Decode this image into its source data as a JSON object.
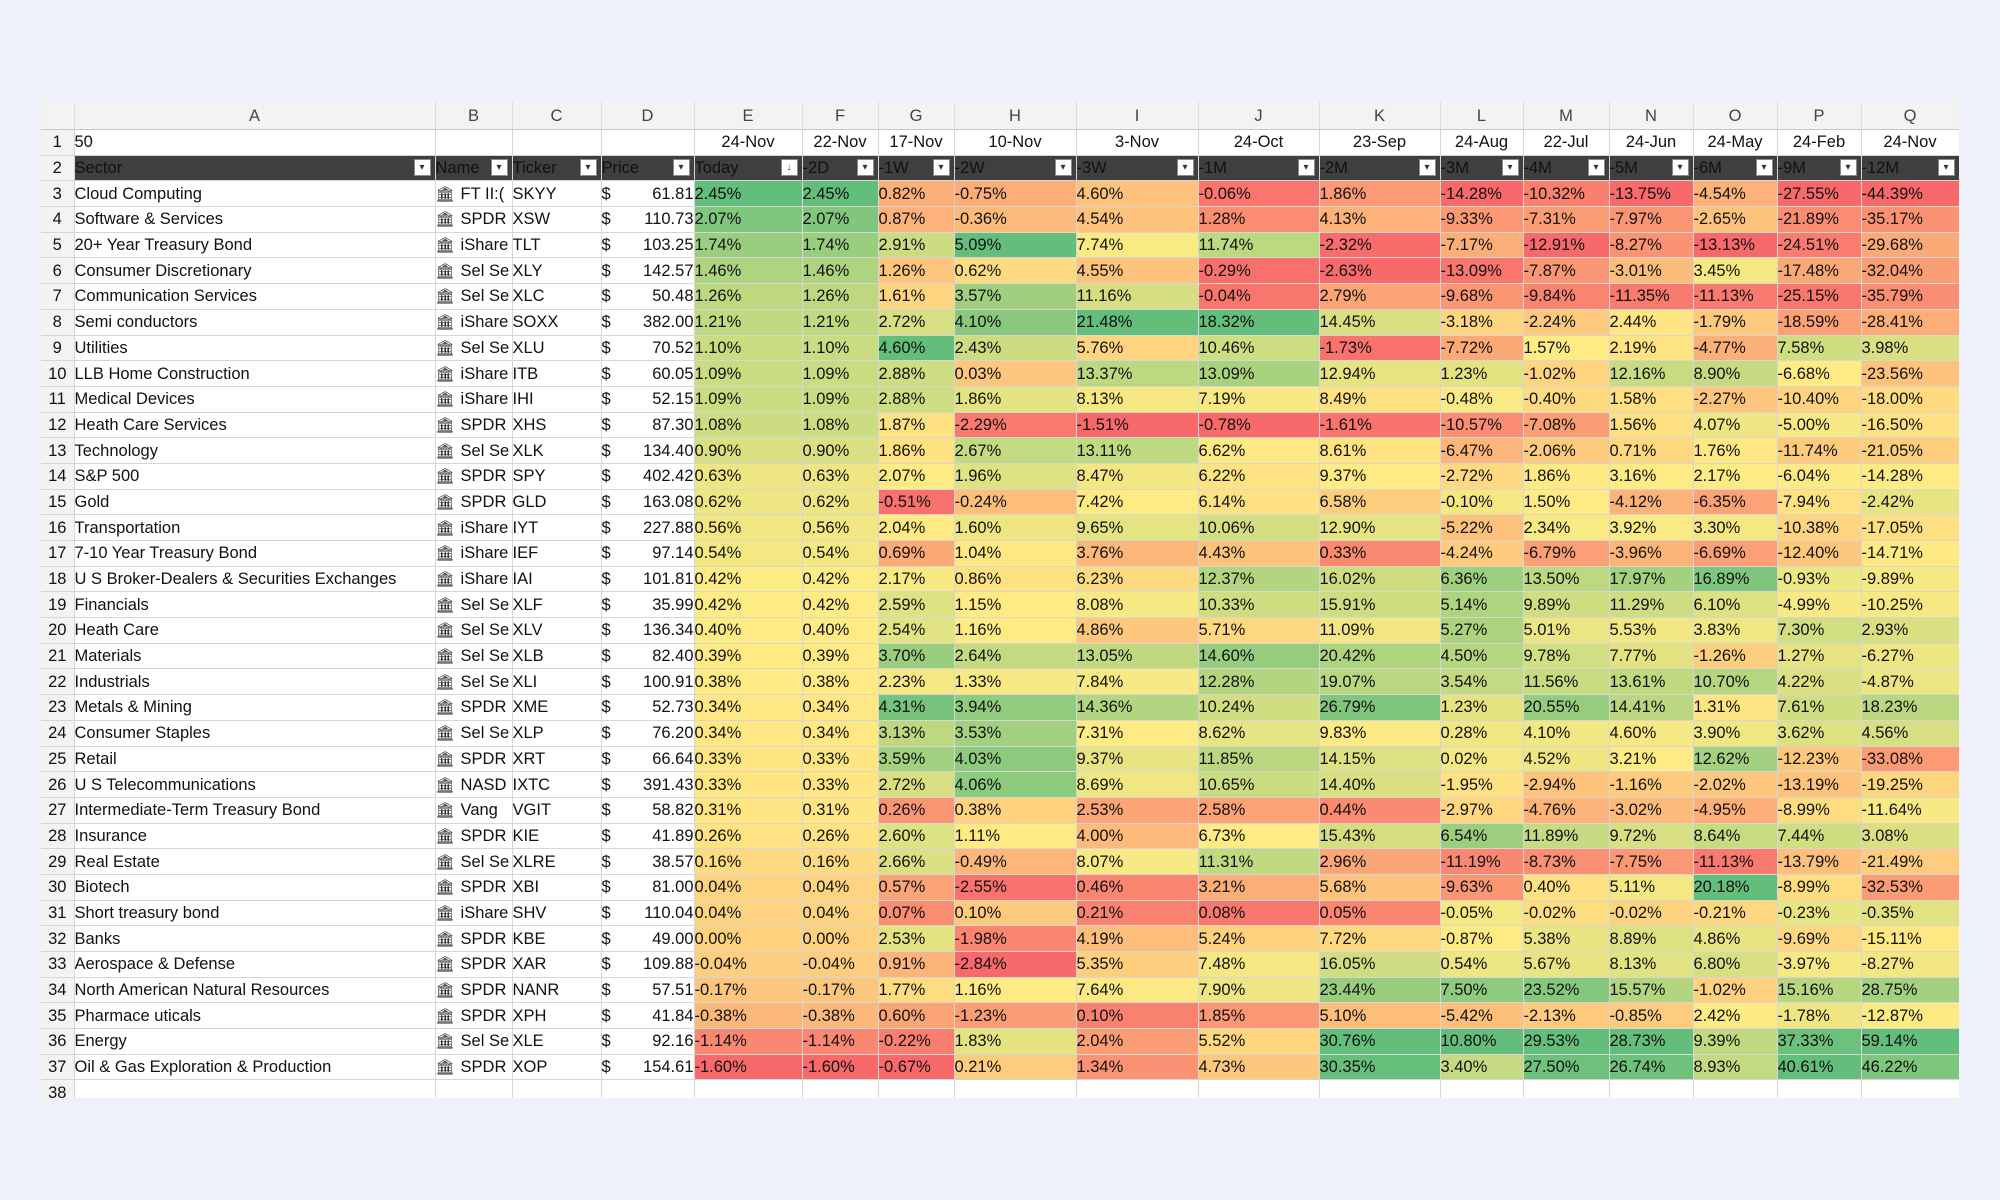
{
  "columns": [
    "A",
    "B",
    "C",
    "D",
    "E",
    "F",
    "G",
    "H",
    "I",
    "J",
    "K",
    "L",
    "M",
    "N",
    "O",
    "P",
    "Q"
  ],
  "row1": {
    "a_value": "50",
    "dates": [
      "24-Nov",
      "22-Nov",
      "17-Nov",
      "10-Nov",
      "3-Nov",
      "24-Oct",
      "23-Sep",
      "24-Aug",
      "22-Jul",
      "24-Jun",
      "24-May",
      "24-Feb",
      "24-Nov"
    ]
  },
  "row2": {
    "sector": "Sector",
    "name": "Name",
    "ticker": "Ticker",
    "price": "Price",
    "periods": [
      "Today",
      "-2D",
      "-1W",
      "-2W",
      "-3W",
      "-1M",
      "-2M",
      "-3M",
      "-4M",
      "-5M",
      "-6M",
      "-9M",
      "-12M"
    ]
  },
  "row_numbers_start": 3,
  "next_row_number": "38",
  "filter_icon": "dropdown-filter-icon",
  "stock_icon": "bank-icon",
  "colors": {
    "green": "#63be7b",
    "yellow": "#ffeb84",
    "red": "#f8696b",
    "header_bg": "#3f3f3f"
  },
  "rows": [
    {
      "sector": "Cloud Computing",
      "name": "FT II:(",
      "ticker": "SKYY",
      "price": "61.81",
      "pct": [
        "2.45%",
        "2.45%",
        "0.82%",
        "-0.75%",
        "4.60%",
        "-0.06%",
        "1.86%",
        "-14.28%",
        "-10.32%",
        "-13.75%",
        "-4.54%",
        "-27.55%",
        "-44.39%"
      ]
    },
    {
      "sector": "Software & Services",
      "name": "SPDR",
      "ticker": "XSW",
      "price": "110.73",
      "pct": [
        "2.07%",
        "2.07%",
        "0.87%",
        "-0.36%",
        "4.54%",
        "1.28%",
        "4.13%",
        "-9.33%",
        "-7.31%",
        "-7.97%",
        "-2.65%",
        "-21.89%",
        "-35.17%"
      ]
    },
    {
      "sector": "20+ Year Treasury Bond",
      "name": "iShare",
      "ticker": "TLT",
      "price": "103.25",
      "pct": [
        "1.74%",
        "1.74%",
        "2.91%",
        "5.09%",
        "7.74%",
        "11.74%",
        "-2.32%",
        "-7.17%",
        "-12.91%",
        "-8.27%",
        "-13.13%",
        "-24.51%",
        "-29.68%"
      ]
    },
    {
      "sector": "Consumer Discretionary",
      "name": "Sel Se",
      "ticker": "XLY",
      "price": "142.57",
      "pct": [
        "1.46%",
        "1.46%",
        "1.26%",
        "0.62%",
        "4.55%",
        "-0.29%",
        "-2.63%",
        "-13.09%",
        "-7.87%",
        "-3.01%",
        "3.45%",
        "-17.48%",
        "-32.04%"
      ]
    },
    {
      "sector": "Communication Services",
      "name": "Sel Se",
      "ticker": "XLC",
      "price": "50.48",
      "pct": [
        "1.26%",
        "1.26%",
        "1.61%",
        "3.57%",
        "11.16%",
        "-0.04%",
        "2.79%",
        "-9.68%",
        "-9.84%",
        "-11.35%",
        "-11.13%",
        "-25.15%",
        "-35.79%"
      ]
    },
    {
      "sector": "Semi conductors",
      "name": "iShare",
      "ticker": "SOXX",
      "price": "382.00",
      "pct": [
        "1.21%",
        "1.21%",
        "2.72%",
        "4.10%",
        "21.48%",
        "18.32%",
        "14.45%",
        "-3.18%",
        "-2.24%",
        "2.44%",
        "-1.79%",
        "-18.59%",
        "-28.41%"
      ]
    },
    {
      "sector": "Utilities",
      "name": "Sel Se",
      "ticker": "XLU",
      "price": "70.52",
      "pct": [
        "1.10%",
        "1.10%",
        "4.60%",
        "2.43%",
        "5.76%",
        "10.46%",
        "-1.73%",
        "-7.72%",
        "1.57%",
        "2.19%",
        "-4.77%",
        "7.58%",
        "3.98%"
      ]
    },
    {
      "sector": "LLB Home Construction",
      "name": "iShare",
      "ticker": "ITB",
      "price": "60.05",
      "pct": [
        "1.09%",
        "1.09%",
        "2.88%",
        "0.03%",
        "13.37%",
        "13.09%",
        "12.94%",
        "1.23%",
        "-1.02%",
        "12.16%",
        "8.90%",
        "-6.68%",
        "-23.56%"
      ]
    },
    {
      "sector": "Medical Devices",
      "name": "iShare",
      "ticker": "IHI",
      "price": "52.15",
      "pct": [
        "1.09%",
        "1.09%",
        "2.88%",
        "1.86%",
        "8.13%",
        "7.19%",
        "8.49%",
        "-0.48%",
        "-0.40%",
        "1.58%",
        "-2.27%",
        "-10.40%",
        "-18.00%"
      ]
    },
    {
      "sector": "Heath Care Services",
      "name": "SPDR",
      "ticker": "XHS",
      "price": "87.30",
      "pct": [
        "1.08%",
        "1.08%",
        "1.87%",
        "-2.29%",
        "-1.51%",
        "-0.78%",
        "-1.61%",
        "-10.57%",
        "-7.08%",
        "1.56%",
        "4.07%",
        "-5.00%",
        "-16.50%"
      ]
    },
    {
      "sector": "Technology",
      "name": "Sel Se",
      "ticker": "XLK",
      "price": "134.40",
      "pct": [
        "0.90%",
        "0.90%",
        "1.86%",
        "2.67%",
        "13.11%",
        "6.62%",
        "8.61%",
        "-6.47%",
        "-2.06%",
        "0.71%",
        "1.76%",
        "-11.74%",
        "-21.05%"
      ]
    },
    {
      "sector": "S&P 500",
      "name": "SPDR",
      "ticker": "SPY",
      "price": "402.42",
      "pct": [
        "0.63%",
        "0.63%",
        "2.07%",
        "1.96%",
        "8.47%",
        "6.22%",
        "9.37%",
        "-2.72%",
        "1.86%",
        "3.16%",
        "2.17%",
        "-6.04%",
        "-14.28%"
      ]
    },
    {
      "sector": "Gold",
      "name": "SPDR",
      "ticker": "GLD",
      "price": "163.08",
      "pct": [
        "0.62%",
        "0.62%",
        "-0.51%",
        "-0.24%",
        "7.42%",
        "6.14%",
        "6.58%",
        "-0.10%",
        "1.50%",
        "-4.12%",
        "-6.35%",
        "-7.94%",
        "-2.42%"
      ]
    },
    {
      "sector": "Transportation",
      "name": "iShare",
      "ticker": "IYT",
      "price": "227.88",
      "pct": [
        "0.56%",
        "0.56%",
        "2.04%",
        "1.60%",
        "9.65%",
        "10.06%",
        "12.90%",
        "-5.22%",
        "2.34%",
        "3.92%",
        "3.30%",
        "-10.38%",
        "-17.05%"
      ]
    },
    {
      "sector": "7-10 Year Treasury Bond",
      "name": "iShare",
      "ticker": "IEF",
      "price": "97.14",
      "pct": [
        "0.54%",
        "0.54%",
        "0.69%",
        "1.04%",
        "3.76%",
        "4.43%",
        "0.33%",
        "-4.24%",
        "-6.79%",
        "-3.96%",
        "-6.69%",
        "-12.40%",
        "-14.71%"
      ]
    },
    {
      "sector": "U S Broker-Dealers & Securities Exchanges",
      "name": "iShare",
      "ticker": "IAI",
      "price": "101.81",
      "pct": [
        "0.42%",
        "0.42%",
        "2.17%",
        "0.86%",
        "6.23%",
        "12.37%",
        "16.02%",
        "6.36%",
        "13.50%",
        "17.97%",
        "16.89%",
        "-0.93%",
        "-9.89%"
      ]
    },
    {
      "sector": "Financials",
      "name": "Sel Se",
      "ticker": "XLF",
      "price": "35.99",
      "pct": [
        "0.42%",
        "0.42%",
        "2.59%",
        "1.15%",
        "8.08%",
        "10.33%",
        "15.91%",
        "5.14%",
        "9.89%",
        "11.29%",
        "6.10%",
        "-4.99%",
        "-10.25%"
      ]
    },
    {
      "sector": "Heath Care",
      "name": "Sel Se",
      "ticker": "XLV",
      "price": "136.34",
      "pct": [
        "0.40%",
        "0.40%",
        "2.54%",
        "1.16%",
        "4.86%",
        "5.71%",
        "11.09%",
        "5.27%",
        "5.01%",
        "5.53%",
        "3.83%",
        "7.30%",
        "2.93%"
      ]
    },
    {
      "sector": "Materials",
      "name": "Sel Se",
      "ticker": "XLB",
      "price": "82.40",
      "pct": [
        "0.39%",
        "0.39%",
        "3.70%",
        "2.64%",
        "13.05%",
        "14.60%",
        "20.42%",
        "4.50%",
        "9.78%",
        "7.77%",
        "-1.26%",
        "1.27%",
        "-6.27%"
      ]
    },
    {
      "sector": "Industrials",
      "name": "Sel Se",
      "ticker": "XLI",
      "price": "100.91",
      "pct": [
        "0.38%",
        "0.38%",
        "2.23%",
        "1.33%",
        "7.84%",
        "12.28%",
        "19.07%",
        "3.54%",
        "11.56%",
        "13.61%",
        "10.70%",
        "4.22%",
        "-4.87%"
      ]
    },
    {
      "sector": "Metals & Mining",
      "name": "SPDR",
      "ticker": "XME",
      "price": "52.73",
      "pct": [
        "0.34%",
        "0.34%",
        "4.31%",
        "3.94%",
        "14.36%",
        "10.24%",
        "26.79%",
        "1.23%",
        "20.55%",
        "14.41%",
        "1.31%",
        "7.61%",
        "18.23%"
      ]
    },
    {
      "sector": "Consumer Staples",
      "name": "Sel Se",
      "ticker": "XLP",
      "price": "76.20",
      "pct": [
        "0.34%",
        "0.34%",
        "3.13%",
        "3.53%",
        "7.31%",
        "8.62%",
        "9.83%",
        "0.28%",
        "4.10%",
        "4.60%",
        "3.90%",
        "3.62%",
        "4.56%"
      ]
    },
    {
      "sector": "Retail",
      "name": "SPDR",
      "ticker": "XRT",
      "price": "66.64",
      "pct": [
        "0.33%",
        "0.33%",
        "3.59%",
        "4.03%",
        "9.37%",
        "11.85%",
        "14.15%",
        "0.02%",
        "4.52%",
        "3.21%",
        "12.62%",
        "-12.23%",
        "-33.08%"
      ]
    },
    {
      "sector": "U S Telecommunications",
      "name": "NASD",
      "ticker": "IXTC",
      "price": "391.43",
      "pct": [
        "0.33%",
        "0.33%",
        "2.72%",
        "4.06%",
        "8.69%",
        "10.65%",
        "14.40%",
        "-1.95%",
        "-2.94%",
        "-1.16%",
        "-2.02%",
        "-13.19%",
        "-19.25%"
      ]
    },
    {
      "sector": "Intermediate-Term Treasury Bond",
      "name": "Vang",
      "ticker": "VGIT",
      "price": "58.82",
      "pct": [
        "0.31%",
        "0.31%",
        "0.26%",
        "0.38%",
        "2.53%",
        "2.58%",
        "0.44%",
        "-2.97%",
        "-4.76%",
        "-3.02%",
        "-4.95%",
        "-8.99%",
        "-11.64%"
      ]
    },
    {
      "sector": "Insurance",
      "name": "SPDR",
      "ticker": "KIE",
      "price": "41.89",
      "pct": [
        "0.26%",
        "0.26%",
        "2.60%",
        "1.11%",
        "4.00%",
        "6.73%",
        "15.43%",
        "6.54%",
        "11.89%",
        "9.72%",
        "8.64%",
        "7.44%",
        "3.08%"
      ]
    },
    {
      "sector": "Real Estate",
      "name": "Sel Se",
      "ticker": "XLRE",
      "price": "38.57",
      "pct": [
        "0.16%",
        "0.16%",
        "2.66%",
        "-0.49%",
        "8.07%",
        "11.31%",
        "2.96%",
        "-11.19%",
        "-8.73%",
        "-7.75%",
        "-11.13%",
        "-13.79%",
        "-21.49%"
      ]
    },
    {
      "sector": "Biotech",
      "name": "SPDR",
      "ticker": "XBI",
      "price": "81.00",
      "pct": [
        "0.04%",
        "0.04%",
        "0.57%",
        "-2.55%",
        "0.46%",
        "3.21%",
        "5.68%",
        "-9.63%",
        "0.40%",
        "5.11%",
        "20.18%",
        "-8.99%",
        "-32.53%"
      ]
    },
    {
      "sector": "Short treasury bond",
      "name": "iShare",
      "ticker": "SHV",
      "price": "110.04",
      "pct": [
        "0.04%",
        "0.04%",
        "0.07%",
        "0.10%",
        "0.21%",
        "0.08%",
        "0.05%",
        "-0.05%",
        "-0.02%",
        "-0.02%",
        "-0.21%",
        "-0.23%",
        "-0.35%"
      ]
    },
    {
      "sector": "Banks",
      "name": "SPDR",
      "ticker": "KBE",
      "price": "49.00",
      "pct": [
        "0.00%",
        "0.00%",
        "2.53%",
        "-1.98%",
        "4.19%",
        "5.24%",
        "7.72%",
        "-0.87%",
        "5.38%",
        "8.89%",
        "4.86%",
        "-9.69%",
        "-15.11%"
      ]
    },
    {
      "sector": "Aerospace & Defense",
      "name": "SPDR",
      "ticker": "XAR",
      "price": "109.88",
      "pct": [
        "-0.04%",
        "-0.04%",
        "0.91%",
        "-2.84%",
        "5.35%",
        "7.48%",
        "16.05%",
        "0.54%",
        "5.67%",
        "8.13%",
        "6.80%",
        "-3.97%",
        "-8.27%"
      ]
    },
    {
      "sector": "North American Natural Resources",
      "name": "SPDR",
      "ticker": "NANR",
      "price": "57.51",
      "pct": [
        "-0.17%",
        "-0.17%",
        "1.77%",
        "1.16%",
        "7.64%",
        "7.90%",
        "23.44%",
        "7.50%",
        "23.52%",
        "15.57%",
        "-1.02%",
        "15.16%",
        "28.75%"
      ]
    },
    {
      "sector": "Pharmace uticals",
      "name": "SPDR",
      "ticker": "XPH",
      "price": "41.84",
      "pct": [
        "-0.38%",
        "-0.38%",
        "0.60%",
        "-1.23%",
        "0.10%",
        "1.85%",
        "5.10%",
        "-5.42%",
        "-2.13%",
        "-0.85%",
        "2.42%",
        "-1.78%",
        "-12.87%"
      ]
    },
    {
      "sector": "Energy",
      "name": "Sel Se",
      "ticker": "XLE",
      "price": "92.16",
      "pct": [
        "-1.14%",
        "-1.14%",
        "-0.22%",
        "1.83%",
        "2.04%",
        "5.52%",
        "30.76%",
        "10.80%",
        "29.53%",
        "28.73%",
        "9.39%",
        "37.33%",
        "59.14%"
      ]
    },
    {
      "sector": "Oil & Gas Exploration & Production",
      "name": "SPDR",
      "ticker": "XOP",
      "price": "154.61",
      "pct": [
        "-1.60%",
        "-1.60%",
        "-0.67%",
        "0.21%",
        "1.34%",
        "4.73%",
        "30.35%",
        "3.40%",
        "27.50%",
        "26.74%",
        "8.93%",
        "40.61%",
        "46.22%"
      ]
    }
  ]
}
